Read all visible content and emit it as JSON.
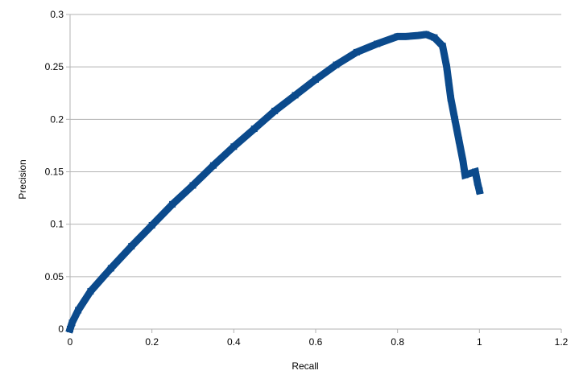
{
  "chart_data": {
    "type": "line",
    "title": "",
    "xlabel": "Recall",
    "ylabel": "Precision",
    "xlim": [
      0,
      1.2
    ],
    "ylim": [
      0,
      0.3
    ],
    "xticks": [
      0,
      0.2,
      0.4,
      0.6,
      0.8,
      1,
      1.2
    ],
    "xtick_labels": [
      "0",
      "0.2",
      "0.4",
      "0.6",
      "0.8",
      "1",
      "1.2"
    ],
    "yticks": [
      0,
      0.05,
      0.1,
      0.15,
      0.2,
      0.25,
      0.3
    ],
    "ytick_labels": [
      "0",
      "0.05",
      "0.1",
      "0.15",
      "0.2",
      "0.25",
      "0.3"
    ],
    "grid": "horizontal",
    "legend": "none",
    "series": [
      {
        "color": "#0b4a8c",
        "x": [
          0,
          0.005,
          0.02,
          0.05,
          0.1,
          0.15,
          0.2,
          0.25,
          0.3,
          0.35,
          0.4,
          0.45,
          0.5,
          0.55,
          0.6,
          0.65,
          0.7,
          0.75,
          0.8,
          0.82,
          0.85,
          0.87,
          0.89,
          0.91,
          0.92,
          0.925,
          0.93,
          0.94,
          0.95,
          0.96,
          0.965,
          0.99,
          0.995,
          1.0
        ],
        "y": [
          0,
          0.006,
          0.018,
          0.036,
          0.058,
          0.079,
          0.099,
          0.119,
          0.137,
          0.156,
          0.174,
          0.191,
          0.208,
          0.223,
          0.238,
          0.252,
          0.264,
          0.272,
          0.279,
          0.279,
          0.28,
          0.281,
          0.278,
          0.27,
          0.25,
          0.235,
          0.22,
          0.2,
          0.18,
          0.16,
          0.147,
          0.15,
          0.14,
          0.132
        ]
      }
    ]
  }
}
